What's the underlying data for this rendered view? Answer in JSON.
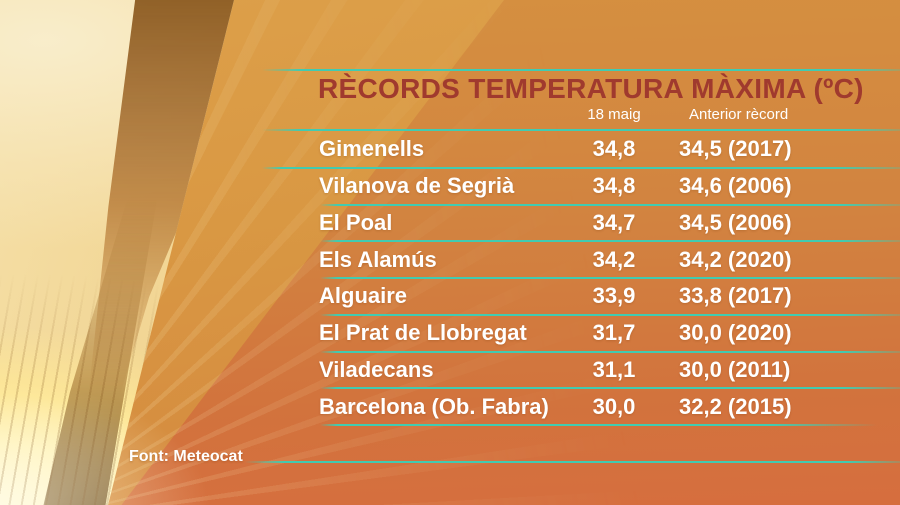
{
  "chart_data": {
    "type": "table",
    "title": "RÈCORDS TEMPERATURA MÀXIMA (ºC)",
    "columns": [
      "18 maig",
      "Anterior rècord"
    ],
    "rows": [
      {
        "name": "Gimenells",
        "current": "34,8",
        "previous": "34,5 (2017)",
        "current_c": 34.8,
        "previous_c": 34.5,
        "previous_year": 2017
      },
      {
        "name": "Vilanova de Segrià",
        "current": "34,8",
        "previous": "34,6 (2006)",
        "current_c": 34.8,
        "previous_c": 34.6,
        "previous_year": 2006
      },
      {
        "name": "El Poal",
        "current": "34,7",
        "previous": "34,5 (2006)",
        "current_c": 34.7,
        "previous_c": 34.5,
        "previous_year": 2006
      },
      {
        "name": "Els Alamús",
        "current": "34,2",
        "previous": "34,2 (2020)",
        "current_c": 34.2,
        "previous_c": 34.2,
        "previous_year": 2020
      },
      {
        "name": "Alguaire",
        "current": "33,9",
        "previous": "33,8 (2017)",
        "current_c": 33.9,
        "previous_c": 33.8,
        "previous_year": 2017
      },
      {
        "name": "El Prat de Llobregat",
        "current": "31,7",
        "previous": "30,0 (2020)",
        "current_c": 31.7,
        "previous_c": 30.0,
        "previous_year": 2020
      },
      {
        "name": "Viladecans",
        "current": "31,1",
        "previous": "30,0 (2011)",
        "current_c": 31.1,
        "previous_c": 30.0,
        "previous_year": 2011
      },
      {
        "name": "Barcelona (Ob. Fabra)",
        "current": "30,0",
        "previous": "32,2 (2015)",
        "current_c": 30.0,
        "previous_c": 32.2,
        "previous_year": 2015
      }
    ],
    "source": "Font: Meteocat"
  },
  "colors": {
    "accent_line": "#42cbb0",
    "title_text": "#a03a2e",
    "row_text": "#ffffff"
  }
}
